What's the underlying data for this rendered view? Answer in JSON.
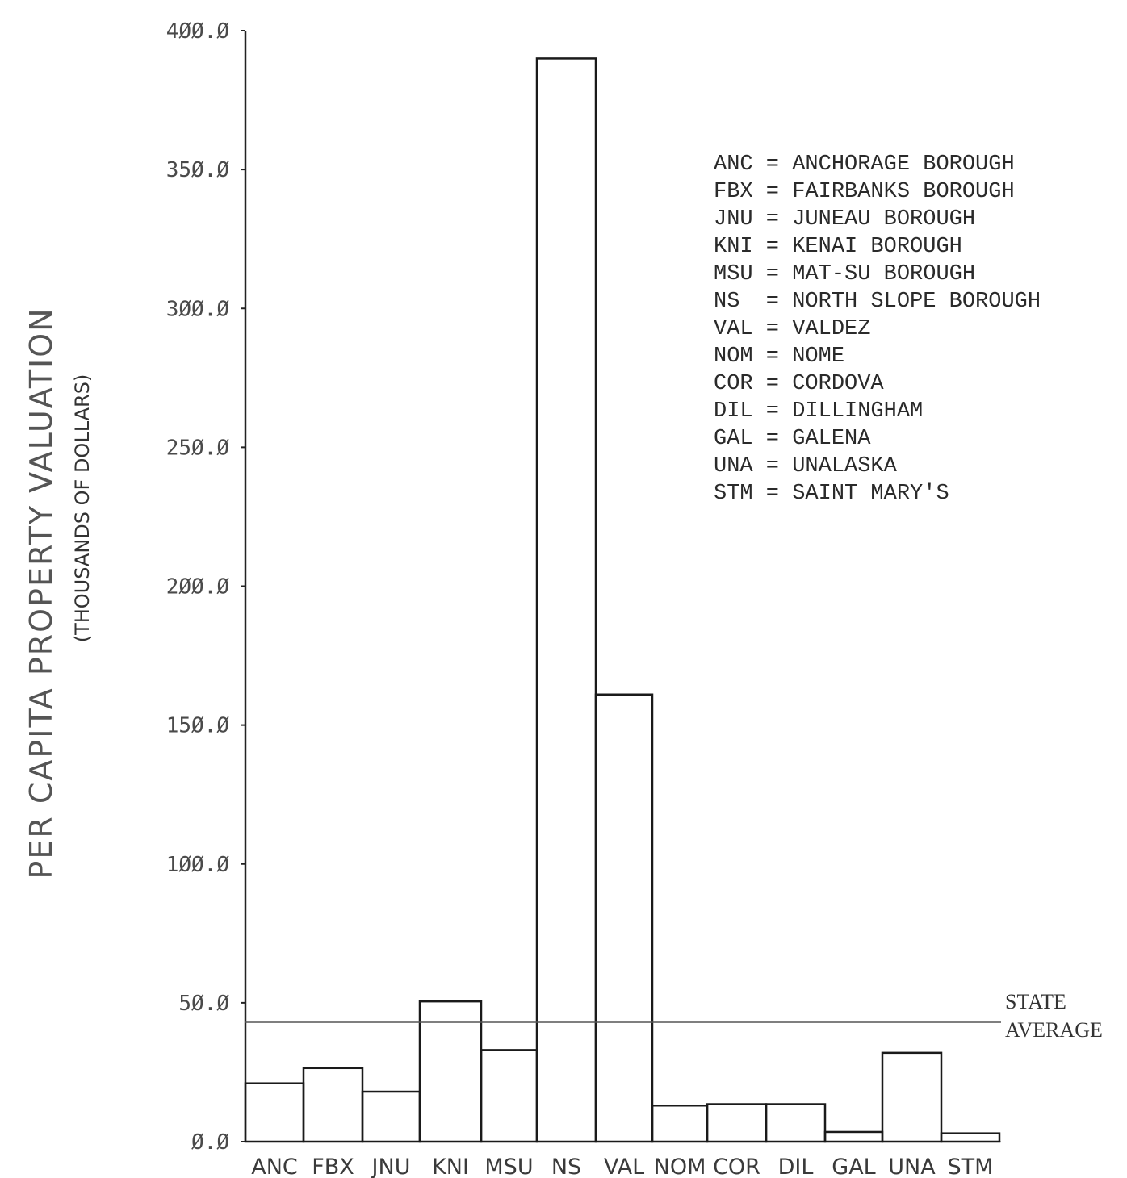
{
  "chart_data": {
    "type": "bar",
    "ylabel": "PER CAPITA PROPERTY VALUATION",
    "ylabel_sub": "(THOUSANDS OF DOLLARS)",
    "ylim": [
      0,
      400
    ],
    "yticks": [
      0,
      50,
      100,
      150,
      200,
      250,
      300,
      350,
      400
    ],
    "ytick_labels": [
      "Ø.Ø",
      "5Ø.Ø",
      "1ØØ.Ø",
      "15Ø.Ø",
      "2ØØ.Ø",
      "25Ø.Ø",
      "3ØØ.Ø",
      "35Ø.Ø",
      "4ØØ.Ø"
    ],
    "categories": [
      "ANC",
      "FBX",
      "JNU",
      "KNI",
      "MSU",
      "NS",
      "VAL",
      "NOM",
      "COR",
      "DIL",
      "GAL",
      "UNA",
      "STM"
    ],
    "values": [
      21,
      26.5,
      18,
      50.5,
      33,
      390,
      161,
      13,
      13.5,
      13.5,
      3.5,
      32,
      3
    ],
    "reference_line": {
      "value": 43,
      "label_line1": "STATE",
      "label_line2": "AVERAGE"
    },
    "legend": [
      "ANC = ANCHORAGE BOROUGH",
      "FBX = FAIRBANKS BOROUGH",
      "JNU = JUNEAU BOROUGH",
      "KNI = KENAI BOROUGH",
      "MSU = MAT-SU BOROUGH",
      "NS  = NORTH SLOPE BOROUGH",
      "VAL = VALDEZ",
      "NOM = NOME",
      "COR = CORDOVA",
      "DIL = DILLINGHAM",
      "GAL = GALENA",
      "UNA = UNALASKA",
      "STM = SAINT MARY'S"
    ],
    "legend_position": "top-right",
    "grid": false
  }
}
